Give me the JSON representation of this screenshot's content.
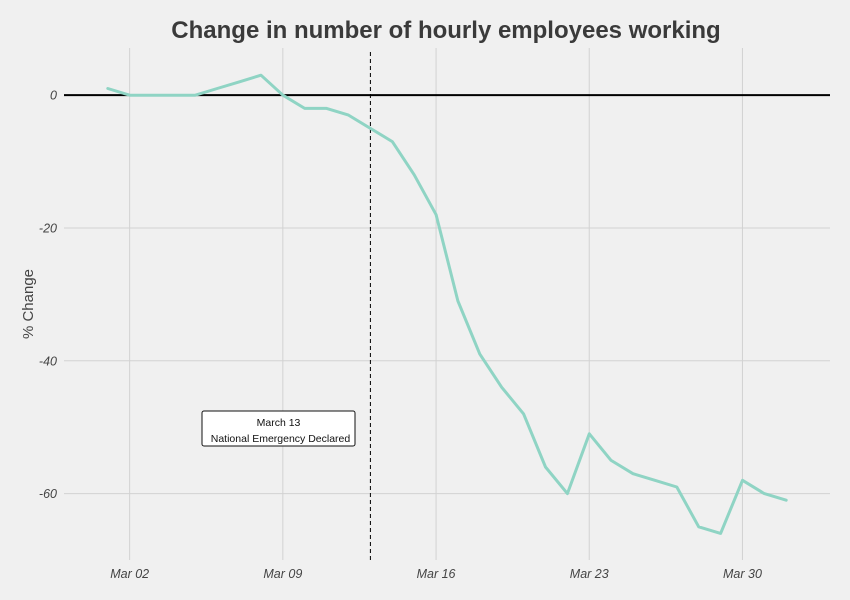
{
  "chart_data": {
    "type": "line",
    "title": "Change in number of hourly employees working",
    "xlabel": "",
    "ylabel": "% Change",
    "x_ticks": [
      "Mar 02",
      "Mar 09",
      "Mar 16",
      "Mar 23",
      "Mar 30"
    ],
    "y_ticks": [
      0,
      -20,
      -40,
      -60
    ],
    "ylim": [
      -70,
      6.5
    ],
    "xlim": [
      "2020-02-28",
      "2020-04-03"
    ],
    "grid": true,
    "legend": "none",
    "series": [
      {
        "color": "#8fd4c4",
        "points": [
          {
            "x": "2020-03-01",
            "y": 1
          },
          {
            "x": "2020-03-02",
            "y": 0
          },
          {
            "x": "2020-03-03",
            "y": 0
          },
          {
            "x": "2020-03-04",
            "y": 0
          },
          {
            "x": "2020-03-05",
            "y": 0
          },
          {
            "x": "2020-03-06",
            "y": 1
          },
          {
            "x": "2020-03-07",
            "y": 2
          },
          {
            "x": "2020-03-08",
            "y": 3
          },
          {
            "x": "2020-03-09",
            "y": 0
          },
          {
            "x": "2020-03-10",
            "y": -2
          },
          {
            "x": "2020-03-11",
            "y": -2
          },
          {
            "x": "2020-03-12",
            "y": -3
          },
          {
            "x": "2020-03-13",
            "y": -5
          },
          {
            "x": "2020-03-14",
            "y": -7
          },
          {
            "x": "2020-03-15",
            "y": -12
          },
          {
            "x": "2020-03-16",
            "y": -18
          },
          {
            "x": "2020-03-17",
            "y": -31
          },
          {
            "x": "2020-03-18",
            "y": -39
          },
          {
            "x": "2020-03-19",
            "y": -44
          },
          {
            "x": "2020-03-20",
            "y": -48
          },
          {
            "x": "2020-03-21",
            "y": -56
          },
          {
            "x": "2020-03-22",
            "y": -60
          },
          {
            "x": "2020-03-23",
            "y": -51
          },
          {
            "x": "2020-03-24",
            "y": -55
          },
          {
            "x": "2020-03-25",
            "y": -57
          },
          {
            "x": "2020-03-26",
            "y": -58
          },
          {
            "x": "2020-03-27",
            "y": -59
          },
          {
            "x": "2020-03-28",
            "y": -65
          },
          {
            "x": "2020-03-29",
            "y": -66
          },
          {
            "x": "2020-03-30",
            "y": -58
          },
          {
            "x": "2020-03-31",
            "y": -60
          },
          {
            "x": "2020-04-01",
            "y": -61
          }
        ]
      }
    ],
    "reference_lines": [
      {
        "axis": "y",
        "value": 0,
        "style": "solid"
      },
      {
        "axis": "x",
        "value": "2020-03-13",
        "style": "dashed"
      }
    ],
    "annotations": [
      {
        "lines": [
          "March 13",
          "National Emergency Declared"
        ]
      }
    ]
  }
}
